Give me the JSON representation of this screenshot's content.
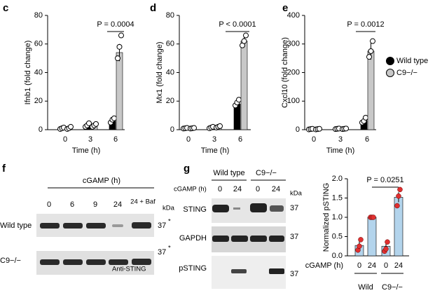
{
  "chart_data": [
    {
      "type": "bar",
      "panel": "c",
      "ylabel": "Ifnb1 (fold change)",
      "xlabel": "Time (h)",
      "categories": [
        "0",
        "3",
        "6"
      ],
      "ylim": [
        0,
        80
      ],
      "yticks": [
        0,
        20,
        40,
        60,
        80
      ],
      "annotation": "P = 0.0004",
      "series": [
        {
          "color": "#000000",
          "values": [
            1,
            3,
            6
          ],
          "errors": [
            0.5,
            1,
            2
          ],
          "points": [
            [
              0.5,
              1,
              1.5
            ],
            [
              2,
              3,
              4.5
            ],
            [
              5,
              7,
              8
            ]
          ]
        },
        {
          "color": "#c8c8c8",
          "values": [
            1,
            3,
            54
          ],
          "errors": [
            0.5,
            1,
            6
          ],
          "points": [
            [
              0.5,
              1,
              2
            ],
            [
              2,
              3,
              4
            ],
            [
              50,
              58,
              66
            ]
          ]
        }
      ]
    },
    {
      "type": "bar",
      "panel": "d",
      "ylabel": "Mx1 (fold change)",
      "xlabel": "Time (h)",
      "categories": [
        "0",
        "3",
        "6"
      ],
      "ylim": [
        0,
        80
      ],
      "yticks": [
        0,
        20,
        40,
        60,
        80
      ],
      "annotation": "P < 0.0001",
      "series": [
        {
          "color": "#000000",
          "values": [
            1,
            1.5,
            18
          ],
          "errors": [
            0.3,
            0.5,
            2
          ],
          "points": [
            [
              0.8,
              1,
              1.2
            ],
            [
              1,
              1.5,
              2
            ],
            [
              17,
              19,
              21
            ]
          ]
        },
        {
          "color": "#c8c8c8",
          "values": [
            1,
            2,
            62
          ],
          "errors": [
            0.3,
            0.5,
            4
          ],
          "points": [
            [
              0.8,
              1,
              1.2
            ],
            [
              1.5,
              2,
              2.5
            ],
            [
              59,
              62,
              66
            ]
          ]
        }
      ]
    },
    {
      "type": "bar",
      "panel": "e",
      "ylabel": "Cxcl10 (fold change)",
      "xlabel": "Time (h)",
      "categories": [
        "0",
        "3",
        "6"
      ],
      "ylim": [
        0,
        400
      ],
      "yticks": [
        0,
        100,
        200,
        300,
        400
      ],
      "annotation": "P = 0.0012",
      "legend": "right",
      "series": [
        {
          "name": "Wild type",
          "color": "#000000",
          "values": [
            2,
            3,
            32
          ],
          "errors": [
            1,
            1,
            8
          ],
          "points": [
            [
              1,
              2,
              3
            ],
            [
              2,
              3,
              4
            ],
            [
              25,
              30,
              42
            ]
          ]
        },
        {
          "name": "C9−/−",
          "color": "#c8c8c8",
          "values": [
            2,
            3,
            275
          ],
          "errors": [
            1,
            1,
            30
          ],
          "points": [
            [
              1,
              2,
              3
            ],
            [
              2,
              3,
              4
            ],
            [
              255,
              275,
              310
            ]
          ]
        }
      ]
    },
    {
      "type": "bar",
      "ylabel": "Normalized pSTING",
      "xlabel": "cGAMP (h)",
      "categories": [
        "0",
        "24",
        "0",
        "24"
      ],
      "groups": [
        "Wild",
        "C9−/−"
      ],
      "ylim": [
        0,
        2
      ],
      "yticks": [
        {
          "value": 0,
          "label": "0.0"
        },
        {
          "value": 0.5,
          "label": "0.5"
        },
        {
          "value": 1,
          "label": "1.0"
        },
        {
          "value": 1.5,
          "label": "1.5"
        },
        {
          "value": 2,
          "label": "2.0"
        }
      ],
      "annotation": "P = 0.0251",
      "color": "#b3d4ec",
      "point_color": "#e03030",
      "values": [
        0.27,
        1.0,
        0.25,
        1.52
      ],
      "errors": [
        0.1,
        0.01,
        0.12,
        0.13
      ],
      "points": [
        [
          0.15,
          0.25,
          0.42
        ],
        [
          1,
          1,
          1
        ],
        [
          0.12,
          0.18,
          0.36
        ],
        [
          1.3,
          1.55,
          1.72
        ]
      ]
    }
  ],
  "blots": {
    "f": {
      "label": "f",
      "treatment": "cGAMP (h)",
      "lanes": [
        "0",
        "6",
        "9",
        "24",
        "24 + Baf"
      ],
      "unit": "kDa",
      "rows": [
        "Wild type",
        "C9−/−"
      ],
      "marker": "37",
      "note": "*",
      "antibody": "Anti-STING"
    },
    "g": {
      "label": "g",
      "groups": [
        "Wild type",
        "C9−/−"
      ],
      "treatment": "cGAMP (h)",
      "lanes": [
        "0",
        "24",
        "0",
        "24"
      ],
      "unit": "kDa",
      "rows": [
        "STING",
        "GAPDH",
        "pSTING"
      ],
      "marker": "37"
    }
  }
}
